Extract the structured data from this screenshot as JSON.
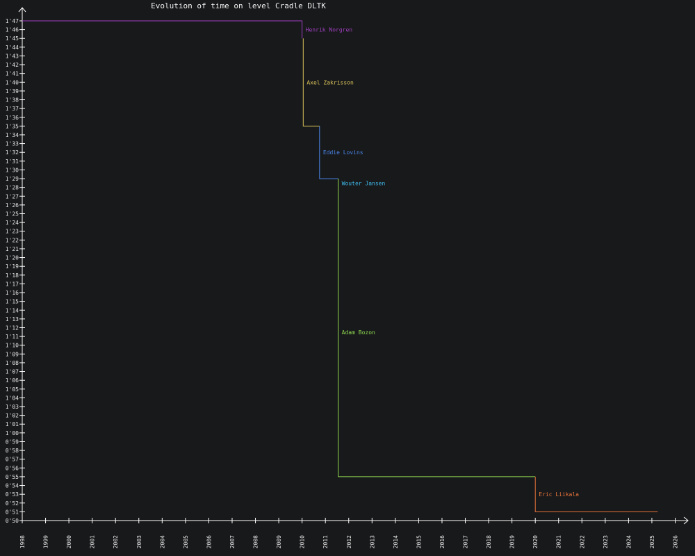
{
  "chart_data": {
    "type": "line",
    "title": "Evolution of time on level Cradle DLTK",
    "xlabel": "",
    "ylabel": "",
    "x_ticks": [
      "1998",
      "1999",
      "2000",
      "2001",
      "2002",
      "2003",
      "2004",
      "2005",
      "2006",
      "2007",
      "2008",
      "2009",
      "2010",
      "2011",
      "2012",
      "2013",
      "2014",
      "2015",
      "2016",
      "2017",
      "2018",
      "2019",
      "2020",
      "2021",
      "2022",
      "2023",
      "2024",
      "2025",
      "2026"
    ],
    "y_ticks": [
      "0'50",
      "0'51",
      "0'52",
      "0'53",
      "0'54",
      "0'55",
      "0'56",
      "0'57",
      "0'58",
      "0'59",
      "1'00",
      "1'01",
      "1'02",
      "1'03",
      "1'04",
      "1'05",
      "1'06",
      "1'07",
      "1'08",
      "1'09",
      "1'10",
      "1'11",
      "1'12",
      "1'13",
      "1'14",
      "1'15",
      "1'16",
      "1'17",
      "1'18",
      "1'19",
      "1'20",
      "1'21",
      "1'22",
      "1'23",
      "1'24",
      "1'25",
      "1'26",
      "1'27",
      "1'28",
      "1'29",
      "1'30",
      "1'31",
      "1'32",
      "1'33",
      "1'34",
      "1'35",
      "1'36",
      "1'37",
      "1'38",
      "1'39",
      "1'40",
      "1'41",
      "1'42",
      "1'43",
      "1'44",
      "1'45",
      "1'46",
      "1'47"
    ],
    "xlim": [
      1998,
      2026
    ],
    "ylim_seconds": [
      50,
      107
    ],
    "grid": false,
    "series": [
      {
        "name": "Henrik Norgren",
        "color": "#a040c0",
        "points": [
          [
            1998.0,
            107
          ],
          [
            2010.0,
            107
          ],
          [
            2010.0,
            105
          ]
        ],
        "label_at": [
          2010.15,
          106
        ]
      },
      {
        "name": "Axel Zakrisson",
        "color": "#d8c25a",
        "points": [
          [
            2010.05,
            105
          ],
          [
            2010.05,
            95
          ],
          [
            2010.75,
            95
          ]
        ],
        "label_at": [
          2010.2,
          100
        ]
      },
      {
        "name": "Eddie Lovins",
        "color": "#4a86e8",
        "points": [
          [
            2010.75,
            95
          ],
          [
            2010.75,
            89
          ],
          [
            2011.55,
            89
          ]
        ],
        "label_at": [
          2010.9,
          92
        ]
      },
      {
        "name": "Wouter Jansen",
        "color": "#3fb8e8",
        "points": [
          [
            2011.55,
            89
          ]
        ],
        "label_at": [
          2011.7,
          88.5
        ]
      },
      {
        "name": "Adam Bozon",
        "color": "#8fd850",
        "points": [
          [
            2011.55,
            89
          ],
          [
            2011.55,
            55
          ],
          [
            2020.0,
            55
          ]
        ],
        "label_at": [
          2011.7,
          71.5
        ]
      },
      {
        "name": "Eric Liikala",
        "color": "#e8743a",
        "points": [
          [
            2020.0,
            55
          ],
          [
            2020.0,
            51
          ],
          [
            2025.25,
            51
          ]
        ],
        "label_at": [
          2020.15,
          53
        ]
      }
    ]
  }
}
